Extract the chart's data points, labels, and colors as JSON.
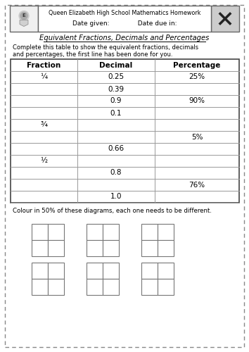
{
  "title": "Equivalent Fractions, Decimals and Percentages",
  "header_line1": "Queen Elizabeth High School Mathematics Homework",
  "header_line2": "Date given:              Date due in:",
  "instruction_line1": "Complete this table to show the equivalent fractions, decimals",
  "instruction_line2": "and percentages, the first line has been done for you.",
  "colour_instruction": "Colour in 50% of these diagrams, each one needs to be different.",
  "col_headers": [
    "Fraction",
    "Decimal",
    "Percentage"
  ],
  "rows": [
    [
      "¼",
      "0.25",
      "25%"
    ],
    [
      "",
      "0.39",
      ""
    ],
    [
      "",
      "0.9",
      "90%"
    ],
    [
      "",
      "0.1",
      ""
    ],
    [
      "¾",
      "",
      ""
    ],
    [
      "",
      "",
      "5%"
    ],
    [
      "",
      "0.66",
      ""
    ],
    [
      "½",
      "",
      ""
    ],
    [
      "",
      "0.8",
      ""
    ],
    [
      "",
      "",
      "76%"
    ],
    [
      "",
      "1.0",
      ""
    ]
  ],
  "bg_color": "#ffffff",
  "dash_color": "#888888",
  "table_border_color": "#444444",
  "table_line_color": "#999999",
  "header_border_color": "#666666"
}
